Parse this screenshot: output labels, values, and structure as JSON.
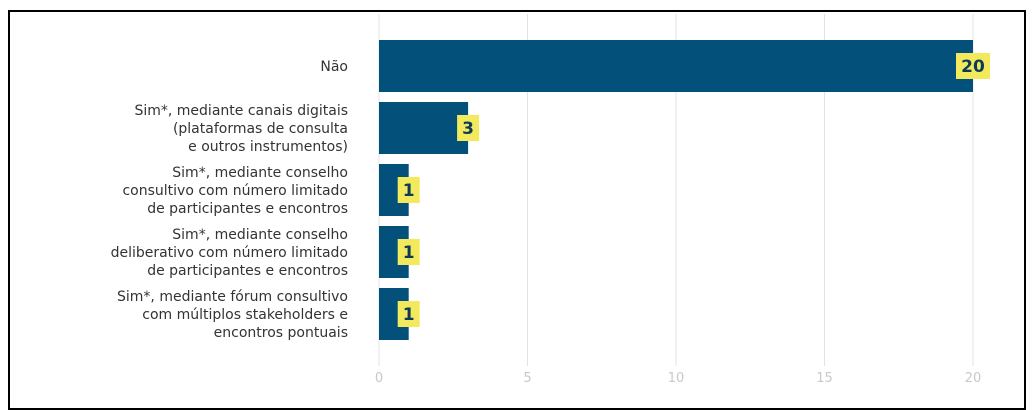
{
  "chart_data": {
    "type": "bar",
    "orientation": "horizontal",
    "title": "",
    "xlabel": "",
    "ylabel": "",
    "categories": [
      "Não",
      "Sim*, mediante canais digitais (plataformas de consulta e outros instrumentos)",
      "Sim*, mediante conselho consultivo com número limitado de participantes e encontros",
      "Sim*, mediante conselho deliberativo com número limitado de participantes e encontros",
      "Sim*, mediante fórum consultivo com múltiplos stakeholders e encontros pontuais"
    ],
    "category_lines": [
      [
        "Não"
      ],
      [
        "Sim*, mediante canais digitais",
        "(plataformas de consulta",
        "e outros instrumentos)"
      ],
      [
        "Sim*, mediante conselho",
        "consultivo com número limitado",
        "de participantes e encontros"
      ],
      [
        "Sim*, mediante conselho",
        "deliberativo com número limitado",
        "de participantes e encontros"
      ],
      [
        "Sim*, mediante fórum consultivo",
        "com múltiplos stakeholders e",
        "encontros pontuais"
      ]
    ],
    "values": [
      20,
      3,
      1,
      1,
      1
    ],
    "value_labels": [
      "20",
      "3",
      "1",
      "1",
      "1"
    ],
    "xlim": [
      0,
      20
    ],
    "xticks": [
      0,
      5,
      10,
      15,
      20
    ],
    "xtick_labels": [
      "0",
      "5",
      "10",
      "15",
      "20"
    ],
    "grid": true,
    "bar_color": "#03517a",
    "label_bg_color": "#f2e95c",
    "label_text_color": "#0d3b57",
    "grid_color": "#e3e3e3"
  }
}
